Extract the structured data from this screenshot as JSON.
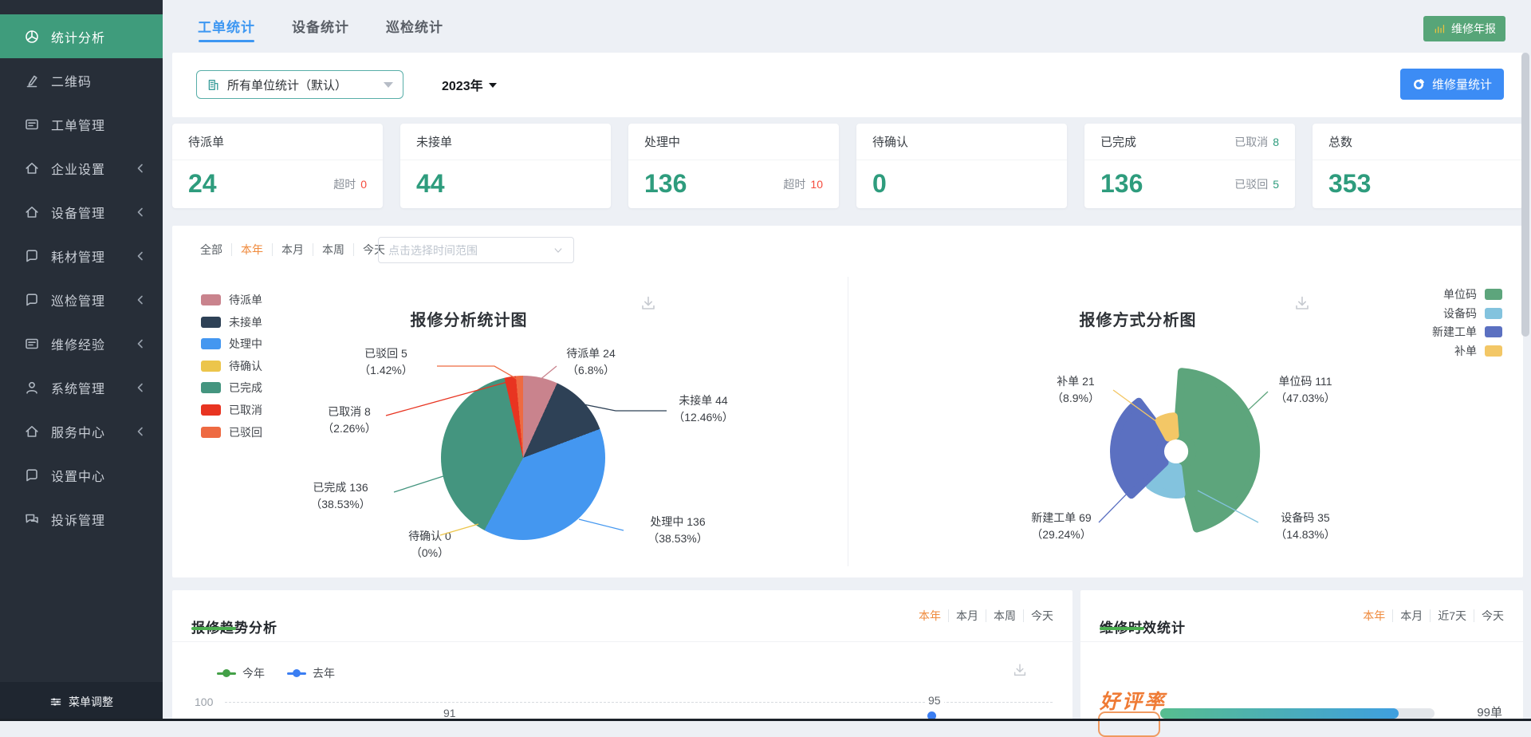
{
  "colors": {
    "sidebar_bg": "#272e38",
    "sidebar_active_green": "#3f9c7c",
    "tab_blue": "#3d97f2",
    "active_orange": "#ef8a3c",
    "stat_green": "#2e9c7d",
    "alert_red": "#f54a3c",
    "report_btn_green": "#57a578",
    "volume_btn_blue": "#3c8cf5"
  },
  "sidebar": {
    "items": [
      {
        "label": "统计分析",
        "icon": "pie-chart-icon",
        "active": true,
        "chevron": false
      },
      {
        "label": "二维码",
        "icon": "pen-icon",
        "active": false,
        "chevron": false
      },
      {
        "label": "工单管理",
        "icon": "card-list-icon",
        "active": false,
        "chevron": false
      },
      {
        "label": "企业设置",
        "icon": "home-icon",
        "active": false,
        "chevron": true
      },
      {
        "label": "设备管理",
        "icon": "home-icon",
        "active": false,
        "chevron": true
      },
      {
        "label": "耗材管理",
        "icon": "chat-square-icon",
        "active": false,
        "chevron": true
      },
      {
        "label": "巡检管理",
        "icon": "chat-square-icon",
        "active": false,
        "chevron": true
      },
      {
        "label": "维修经验",
        "icon": "card-list-icon",
        "active": false,
        "chevron": true
      },
      {
        "label": "系统管理",
        "icon": "person-icon",
        "active": false,
        "chevron": true
      },
      {
        "label": "服务中心",
        "icon": "home-icon",
        "active": false,
        "chevron": true
      },
      {
        "label": "设置中心",
        "icon": "chat-square-icon",
        "active": false,
        "chevron": false
      },
      {
        "label": "投诉管理",
        "icon": "chat-bubbles-icon",
        "active": false,
        "chevron": false
      }
    ],
    "footer_label": "菜单调整"
  },
  "topbar": {
    "tabs": [
      {
        "label": "工单统计",
        "active": true
      },
      {
        "label": "设备统计",
        "active": false
      },
      {
        "label": "巡检统计",
        "active": false
      }
    ],
    "report_button": "维修年报"
  },
  "toolbar": {
    "unit_filter": "所有单位统计（默认）",
    "year_filter": "2023年",
    "volume_button": "维修量统计"
  },
  "stat_cards": {
    "c1": {
      "title": "待派单",
      "value": "24",
      "side_label": "超时",
      "side_value": "0"
    },
    "c2": {
      "title": "未接单",
      "value": "44"
    },
    "c3": {
      "title": "处理中",
      "value": "136",
      "side_label": "超时",
      "side_value": "10"
    },
    "c4": {
      "title": "待确认",
      "value": "0"
    },
    "c5": {
      "title": "已完成",
      "value": "136",
      "header_label": "已取消",
      "header_value": "8",
      "side_label": "已驳回",
      "side_value": "5"
    },
    "c6": {
      "title": "总数",
      "value": "353"
    }
  },
  "time_filter": {
    "options": [
      {
        "label": "全部",
        "active": false
      },
      {
        "label": "本年",
        "active": true
      },
      {
        "label": "本月",
        "active": false
      },
      {
        "label": "本周",
        "active": false
      },
      {
        "label": "今天",
        "active": false
      }
    ],
    "range_placeholder": "点击选择时间范围"
  },
  "charts": {
    "analysis": {
      "title": "报修分析统计图",
      "legend": [
        {
          "label": "待派单",
          "color": "#c9838d"
        },
        {
          "label": "未接单",
          "color": "#2e4156"
        },
        {
          "label": "处理中",
          "color": "#4497f0"
        },
        {
          "label": "待确认",
          "color": "#ecc54b"
        },
        {
          "label": "已完成",
          "color": "#44957f"
        },
        {
          "label": "已取消",
          "color": "#e83421"
        },
        {
          "label": "已驳回",
          "color": "#ee6a42"
        }
      ],
      "labels": [
        {
          "line1": "已驳回 5",
          "line2": "（1.42%）"
        },
        {
          "line1": "待派单 24",
          "line2": "（6.8%）"
        },
        {
          "line1": "已取消 8",
          "line2": "（2.26%）"
        },
        {
          "line1": "未接单 44",
          "line2": "（12.46%）"
        },
        {
          "line1": "已完成 136",
          "line2": "（38.53%）"
        },
        {
          "line1": "待确认 0",
          "line2": "（0%）"
        },
        {
          "line1": "处理中 136",
          "line2": "（38.53%）"
        }
      ]
    },
    "method": {
      "title": "报修方式分析图",
      "legend": [
        {
          "label": "单位码",
          "color": "#5da57c"
        },
        {
          "label": "设备码",
          "color": "#83c3de"
        },
        {
          "label": "新建工单",
          "color": "#5b70c1"
        },
        {
          "label": "补单",
          "color": "#f3c766"
        }
      ],
      "labels": [
        {
          "line1": "补单 21",
          "line2": "（8.9%）"
        },
        {
          "line1": "单位码 111",
          "line2": "（47.03%）"
        },
        {
          "line1": "新建工单 69",
          "line2": "（29.24%）"
        },
        {
          "line1": "设备码 35",
          "line2": "（14.83%）"
        }
      ]
    }
  },
  "trend": {
    "title": "报修趋势分析",
    "tabs": [
      {
        "label": "本年",
        "active": true
      },
      {
        "label": "本月",
        "active": false
      },
      {
        "label": "本周",
        "active": false
      },
      {
        "label": "今天",
        "active": false
      }
    ],
    "legend": [
      {
        "label": "今年",
        "color": "#43a047"
      },
      {
        "label": "去年",
        "color": "#3b7ef2"
      }
    ],
    "y_tick": "100",
    "point_label_1": "91",
    "point_label_2": "95"
  },
  "efficiency": {
    "title": "维修时效统计",
    "tabs": [
      {
        "label": "本年",
        "active": true
      },
      {
        "label": "本月",
        "active": false
      },
      {
        "label": "近7天",
        "active": false
      },
      {
        "label": "今天",
        "active": false
      }
    ],
    "rating_label": "好评率",
    "orders_label": "99单",
    "progress_width": "87%"
  },
  "chart_data": [
    {
      "type": "pie",
      "title": "报修分析统计图",
      "series": [
        {
          "name": "待派单",
          "value": 24,
          "pct": "6.8%",
          "color": "#c9838d"
        },
        {
          "name": "未接单",
          "value": 44,
          "pct": "12.46%",
          "color": "#2e4156"
        },
        {
          "name": "处理中",
          "value": 136,
          "pct": "38.53%",
          "color": "#4497f0"
        },
        {
          "name": "待确认",
          "value": 0,
          "pct": "0%",
          "color": "#ecc54b"
        },
        {
          "name": "已完成",
          "value": 136,
          "pct": "38.53%",
          "color": "#44957f"
        },
        {
          "name": "已取消",
          "value": 8,
          "pct": "2.26%",
          "color": "#e83421"
        },
        {
          "name": "已驳回",
          "value": 5,
          "pct": "1.42%",
          "color": "#ee6a42"
        }
      ]
    },
    {
      "type": "rose-pie",
      "title": "报修方式分析图",
      "series": [
        {
          "name": "单位码",
          "value": 111,
          "pct": "47.03%",
          "color": "#5da57c"
        },
        {
          "name": "设备码",
          "value": 35,
          "pct": "14.83%",
          "color": "#83c3de"
        },
        {
          "name": "新建工单",
          "value": 69,
          "pct": "29.24%",
          "color": "#5b70c1"
        },
        {
          "name": "补单",
          "value": 21,
          "pct": "8.9%",
          "color": "#f3c766"
        }
      ]
    },
    {
      "type": "line",
      "title": "报修趋势分析",
      "legend": [
        "今年",
        "去年"
      ],
      "y_tick_visible": 100,
      "visible_point_labels": [
        91,
        95
      ]
    },
    {
      "type": "progress",
      "title": "维修时效统计",
      "metric": "好评率",
      "fill_pct": 87,
      "right_label": "99单"
    }
  ]
}
